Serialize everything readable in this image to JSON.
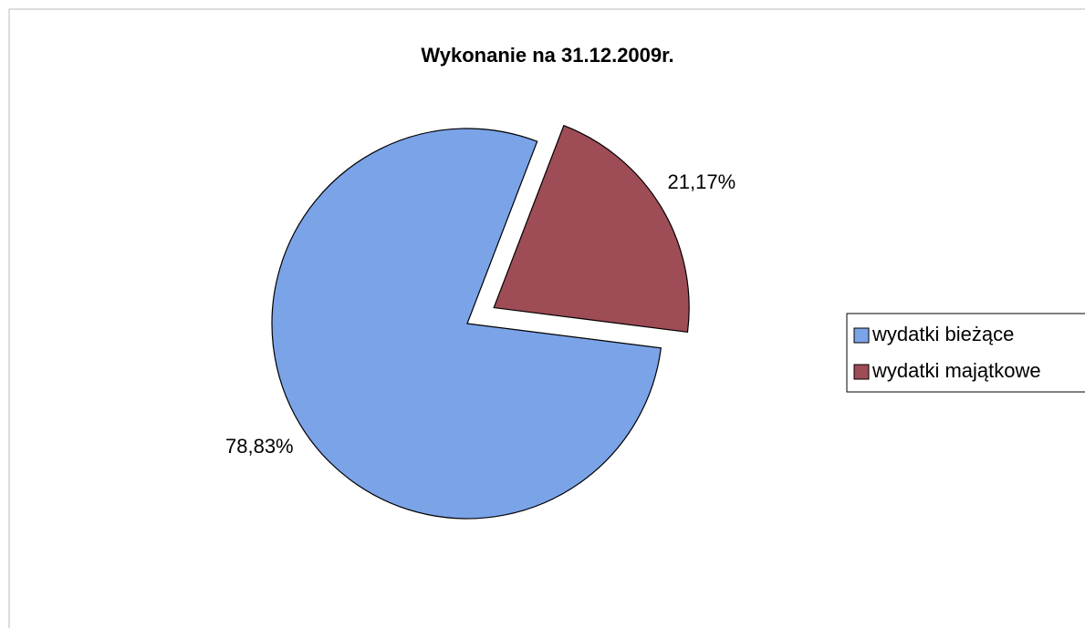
{
  "chart_data": {
    "type": "pie",
    "title": "Wykonanie na 31.12.2009r.",
    "categories": [
      "wydatki bieżące",
      "wydatki majątkowe"
    ],
    "values": [
      78.83,
      21.17
    ],
    "value_labels": [
      "78,83%",
      "21,17%"
    ],
    "colors": [
      "#7ba3e8",
      "#9e4c55"
    ],
    "exploded": [
      false,
      true
    ],
    "legend": "right"
  }
}
